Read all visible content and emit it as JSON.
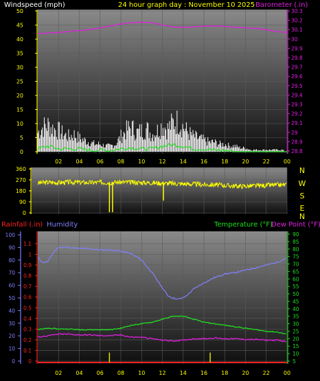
{
  "header": {
    "windspeed_label": "Windspeed (mph)",
    "title": "24 hour graph day : November 10 2025",
    "barometer_label": "Barometer (.in)"
  },
  "compass_letters": [
    "N",
    "W",
    "S",
    "E",
    "N"
  ],
  "bottom_labels": {
    "rainfall": "Rainfall (.in)",
    "humidity": "Humidity",
    "temperature": "Temperature (°F)",
    "dewpoint": "Dew Point (°F)"
  },
  "colors": {
    "windspeed_label": "#ffffff",
    "title": "#ffff00",
    "barometer": "#e020e0",
    "wind_avg": "#20e020",
    "wind_gust": "#ffffff",
    "direction": "#ffff00",
    "rainfall": "#ff2020",
    "humidity": "#8080ff",
    "temperature": "#20e020",
    "dewpoint": "#e020e0",
    "rain_bar": "#e0e000"
  },
  "x_ticks": [
    "02",
    "04",
    "06",
    "08",
    "10",
    "12",
    "14",
    "16",
    "18",
    "20",
    "22",
    "00"
  ],
  "chart_data": [
    {
      "type": "line",
      "name": "wind-barometer",
      "title": "24 hour graph day : November 10 2025",
      "ylabel_left": "Windspeed (mph)",
      "ylabel_right": "Barometer (.in)",
      "x_hours": [
        0,
        24
      ],
      "y_left_ticks": [
        "0",
        "5",
        "10",
        "15",
        "20",
        "25",
        "30",
        "35",
        "40",
        "45",
        "50"
      ],
      "y_left_lim": [
        0,
        50
      ],
      "y_right_ticks": [
        "28.8",
        "28.9",
        "29",
        "29.1",
        "29.2",
        "29.3",
        "29.4",
        "29.5",
        "29.6",
        "29.7",
        "29.8",
        "29.9",
        "30",
        "30.1",
        "30.2",
        "30.3"
      ],
      "y_right_lim": [
        28.8,
        30.3
      ],
      "barometer": [
        {
          "h": 0.0,
          "v": 30.06
        },
        {
          "h": 0.5,
          "v": 30.06
        },
        {
          "h": 1.0,
          "v": 30.065
        },
        {
          "h": 2.0,
          "v": 30.07
        },
        {
          "h": 3.0,
          "v": 30.08
        },
        {
          "h": 4.0,
          "v": 30.09
        },
        {
          "h": 5.0,
          "v": 30.1
        },
        {
          "h": 6.0,
          "v": 30.12
        },
        {
          "h": 7.0,
          "v": 30.14
        },
        {
          "h": 8.0,
          "v": 30.16
        },
        {
          "h": 9.0,
          "v": 30.175
        },
        {
          "h": 10.0,
          "v": 30.18
        },
        {
          "h": 11.0,
          "v": 30.175
        },
        {
          "h": 12.0,
          "v": 30.15
        },
        {
          "h": 13.0,
          "v": 30.13
        },
        {
          "h": 14.0,
          "v": 30.125
        },
        {
          "h": 15.0,
          "v": 30.13
        },
        {
          "h": 16.0,
          "v": 30.14
        },
        {
          "h": 17.0,
          "v": 30.14
        },
        {
          "h": 18.0,
          "v": 30.135
        },
        {
          "h": 19.0,
          "v": 30.125
        },
        {
          "h": 20.0,
          "v": 30.12
        },
        {
          "h": 21.0,
          "v": 30.115
        },
        {
          "h": 22.0,
          "v": 30.1
        },
        {
          "h": 23.0,
          "v": 30.08
        },
        {
          "h": 24.0,
          "v": 30.07
        }
      ],
      "wind_gust_envelope": [
        {
          "h": 0.0,
          "v": 10
        },
        {
          "h": 0.5,
          "v": 13
        },
        {
          "h": 1.0,
          "v": 14
        },
        {
          "h": 1.5,
          "v": 12
        },
        {
          "h": 2.0,
          "v": 11
        },
        {
          "h": 2.5,
          "v": 9
        },
        {
          "h": 3.0,
          "v": 8
        },
        {
          "h": 3.5,
          "v": 9
        },
        {
          "h": 4.0,
          "v": 7
        },
        {
          "h": 4.5,
          "v": 6
        },
        {
          "h": 5.0,
          "v": 5
        },
        {
          "h": 5.5,
          "v": 4
        },
        {
          "h": 6.0,
          "v": 4
        },
        {
          "h": 6.5,
          "v": 3
        },
        {
          "h": 7.0,
          "v": 3
        },
        {
          "h": 7.5,
          "v": 4
        },
        {
          "h": 8.0,
          "v": 8
        },
        {
          "h": 8.5,
          "v": 11
        },
        {
          "h": 9.0,
          "v": 13
        },
        {
          "h": 9.5,
          "v": 10
        },
        {
          "h": 10.0,
          "v": 11
        },
        {
          "h": 10.5,
          "v": 12
        },
        {
          "h": 11.0,
          "v": 9
        },
        {
          "h": 11.5,
          "v": 11
        },
        {
          "h": 12.0,
          "v": 14
        },
        {
          "h": 12.5,
          "v": 12
        },
        {
          "h": 13.0,
          "v": 15
        },
        {
          "h": 13.5,
          "v": 16
        },
        {
          "h": 14.0,
          "v": 13
        },
        {
          "h": 14.5,
          "v": 10
        },
        {
          "h": 15.0,
          "v": 8
        },
        {
          "h": 15.5,
          "v": 7
        },
        {
          "h": 16.0,
          "v": 6
        },
        {
          "h": 16.5,
          "v": 5
        },
        {
          "h": 17.0,
          "v": 5
        },
        {
          "h": 17.5,
          "v": 4
        },
        {
          "h": 18.0,
          "v": 4
        },
        {
          "h": 18.5,
          "v": 3
        },
        {
          "h": 19.0,
          "v": 3
        },
        {
          "h": 19.5,
          "v": 2
        },
        {
          "h": 20.0,
          "v": 2
        },
        {
          "h": 20.5,
          "v": 1
        },
        {
          "h": 21.0,
          "v": 1
        },
        {
          "h": 21.5,
          "v": 1
        },
        {
          "h": 22.0,
          "v": 1
        },
        {
          "h": 22.5,
          "v": 1
        },
        {
          "h": 23.0,
          "v": 1
        },
        {
          "h": 23.5,
          "v": 1
        },
        {
          "h": 24.0,
          "v": 0
        }
      ],
      "wind_average": [
        {
          "h": 0.0,
          "v": 1
        },
        {
          "h": 1.0,
          "v": 2
        },
        {
          "h": 2.0,
          "v": 1
        },
        {
          "h": 3.0,
          "v": 1
        },
        {
          "h": 4.0,
          "v": 1
        },
        {
          "h": 5.0,
          "v": 0.5
        },
        {
          "h": 6.0,
          "v": 0.5
        },
        {
          "h": 7.0,
          "v": 0.5
        },
        {
          "h": 8.0,
          "v": 1
        },
        {
          "h": 9.0,
          "v": 1.5
        },
        {
          "h": 10.0,
          "v": 1
        },
        {
          "h": 11.0,
          "v": 1
        },
        {
          "h": 12.0,
          "v": 2
        },
        {
          "h": 13.0,
          "v": 2.5
        },
        {
          "h": 14.0,
          "v": 2
        },
        {
          "h": 15.0,
          "v": 1
        },
        {
          "h": 16.0,
          "v": 1
        },
        {
          "h": 17.0,
          "v": 0.5
        },
        {
          "h": 18.0,
          "v": 0.5
        },
        {
          "h": 19.0,
          "v": 0
        },
        {
          "h": 24.0,
          "v": 0
        }
      ]
    },
    {
      "type": "line",
      "name": "wind-direction",
      "y_ticks": [
        "360",
        "270",
        "180",
        "90",
        "0"
      ],
      "y_lim": [
        0,
        360
      ],
      "direction": [
        {
          "h": 0.0,
          "v": 245
        },
        {
          "h": 1.0,
          "v": 250
        },
        {
          "h": 2.0,
          "v": 248
        },
        {
          "h": 3.0,
          "v": 252
        },
        {
          "h": 4.0,
          "v": 250
        },
        {
          "h": 5.0,
          "v": 248
        },
        {
          "h": 6.0,
          "v": 250
        },
        {
          "h": 7.0,
          "v": 248
        },
        {
          "h": 8.0,
          "v": 252
        },
        {
          "h": 9.0,
          "v": 250
        },
        {
          "h": 10.0,
          "v": 248
        },
        {
          "h": 11.0,
          "v": 246
        },
        {
          "h": 12.0,
          "v": 243
        },
        {
          "h": 13.0,
          "v": 240
        },
        {
          "h": 14.0,
          "v": 238
        },
        {
          "h": 15.0,
          "v": 235
        },
        {
          "h": 16.0,
          "v": 232
        },
        {
          "h": 17.0,
          "v": 230
        },
        {
          "h": 18.0,
          "v": 225
        },
        {
          "h": 19.0,
          "v": 220
        },
        {
          "h": 20.0,
          "v": 218
        },
        {
          "h": 21.0,
          "v": 222
        },
        {
          "h": 22.0,
          "v": 225
        },
        {
          "h": 23.0,
          "v": 228
        },
        {
          "h": 24.0,
          "v": 230
        }
      ],
      "spikes": [
        {
          "h": 6.9,
          "v": 5
        },
        {
          "h": 7.2,
          "v": 5
        },
        {
          "h": 12.1,
          "v": 100
        }
      ]
    },
    {
      "type": "line",
      "name": "temp-humidity-rain",
      "ylabel_left_outer": "Rainfall (.in)",
      "ylabel_left_inner": "Humidity",
      "ylabel_right": "Temperature (°F)",
      "ylabel_right2": "Dew Point (°F)",
      "humidity_ticks": [
        "0",
        "10",
        "20",
        "30",
        "40",
        "50",
        "60",
        "70",
        "80",
        "90",
        "100"
      ],
      "humidity_lim": [
        0,
        100
      ],
      "rain_ticks": [
        "0",
        "0.1",
        "0.2",
        "0.3",
        "0.4",
        "0.5",
        "0.6",
        "0.7",
        "0.8",
        "0.9",
        "1",
        "1.1"
      ],
      "rain_lim": [
        0,
        1.1
      ],
      "temp_ticks": [
        "5",
        "10",
        "15",
        "20",
        "25",
        "30",
        "35",
        "40",
        "45",
        "50",
        "55",
        "60",
        "65",
        "70",
        "75",
        "80",
        "85",
        "90"
      ],
      "temp_lim": [
        5,
        90
      ],
      "humidity": [
        {
          "h": 0.0,
          "v": 82
        },
        {
          "h": 0.5,
          "v": 78
        },
        {
          "h": 1.0,
          "v": 79
        },
        {
          "h": 1.5,
          "v": 86
        },
        {
          "h": 2.0,
          "v": 90
        },
        {
          "h": 3.0,
          "v": 90
        },
        {
          "h": 4.0,
          "v": 89
        },
        {
          "h": 5.0,
          "v": 89
        },
        {
          "h": 6.0,
          "v": 88
        },
        {
          "h": 7.0,
          "v": 88
        },
        {
          "h": 8.0,
          "v": 87
        },
        {
          "h": 9.0,
          "v": 85
        },
        {
          "h": 10.0,
          "v": 80
        },
        {
          "h": 11.0,
          "v": 70
        },
        {
          "h": 12.0,
          "v": 58
        },
        {
          "h": 12.5,
          "v": 52
        },
        {
          "h": 13.0,
          "v": 50
        },
        {
          "h": 13.5,
          "v": 49
        },
        {
          "h": 14.0,
          "v": 50
        },
        {
          "h": 14.5,
          "v": 53
        },
        {
          "h": 15.0,
          "v": 57
        },
        {
          "h": 16.0,
          "v": 62
        },
        {
          "h": 17.0,
          "v": 66
        },
        {
          "h": 18.0,
          "v": 69
        },
        {
          "h": 19.0,
          "v": 70
        },
        {
          "h": 20.0,
          "v": 72
        },
        {
          "h": 21.0,
          "v": 74
        },
        {
          "h": 22.0,
          "v": 76
        },
        {
          "h": 23.0,
          "v": 78
        },
        {
          "h": 24.0,
          "v": 82
        }
      ],
      "temperature": [
        {
          "h": 0.0,
          "v": 26
        },
        {
          "h": 1.0,
          "v": 27
        },
        {
          "h": 2.0,
          "v": 26.5
        },
        {
          "h": 3.0,
          "v": 26.5
        },
        {
          "h": 4.0,
          "v": 26
        },
        {
          "h": 5.0,
          "v": 26
        },
        {
          "h": 6.0,
          "v": 26
        },
        {
          "h": 7.0,
          "v": 26
        },
        {
          "h": 8.0,
          "v": 27
        },
        {
          "h": 9.0,
          "v": 29
        },
        {
          "h": 10.0,
          "v": 30
        },
        {
          "h": 11.0,
          "v": 31
        },
        {
          "h": 12.0,
          "v": 33
        },
        {
          "h": 13.0,
          "v": 35
        },
        {
          "h": 14.0,
          "v": 35
        },
        {
          "h": 15.0,
          "v": 33
        },
        {
          "h": 16.0,
          "v": 31
        },
        {
          "h": 17.0,
          "v": 30
        },
        {
          "h": 18.0,
          "v": 29
        },
        {
          "h": 19.0,
          "v": 28
        },
        {
          "h": 20.0,
          "v": 27
        },
        {
          "h": 21.0,
          "v": 26
        },
        {
          "h": 22.0,
          "v": 25
        },
        {
          "h": 23.0,
          "v": 24.5
        },
        {
          "h": 24.0,
          "v": 23
        }
      ],
      "dewpoint": [
        {
          "h": 0.0,
          "v": 21
        },
        {
          "h": 1.0,
          "v": 22
        },
        {
          "h": 2.0,
          "v": 23
        },
        {
          "h": 3.0,
          "v": 23
        },
        {
          "h": 4.0,
          "v": 22.5
        },
        {
          "h": 5.0,
          "v": 22.5
        },
        {
          "h": 6.0,
          "v": 22
        },
        {
          "h": 7.0,
          "v": 22
        },
        {
          "h": 8.0,
          "v": 22.5
        },
        {
          "h": 9.0,
          "v": 21
        },
        {
          "h": 10.0,
          "v": 21
        },
        {
          "h": 11.0,
          "v": 20
        },
        {
          "h": 12.0,
          "v": 19
        },
        {
          "h": 13.0,
          "v": 18.5
        },
        {
          "h": 14.0,
          "v": 19
        },
        {
          "h": 15.0,
          "v": 20
        },
        {
          "h": 16.0,
          "v": 20
        },
        {
          "h": 17.0,
          "v": 20.5
        },
        {
          "h": 18.0,
          "v": 20
        },
        {
          "h": 19.0,
          "v": 20
        },
        {
          "h": 20.0,
          "v": 19.5
        },
        {
          "h": 21.0,
          "v": 19.5
        },
        {
          "h": 22.0,
          "v": 19
        },
        {
          "h": 23.0,
          "v": 19
        },
        {
          "h": 24.0,
          "v": 18
        }
      ],
      "rainfall": [
        {
          "h": 0.0,
          "v": 0
        },
        {
          "h": 24.0,
          "v": 0
        }
      ],
      "rain_bars": [
        {
          "h": 6.9,
          "v": 0.08
        },
        {
          "h": 16.6,
          "v": 0.08
        }
      ]
    }
  ]
}
